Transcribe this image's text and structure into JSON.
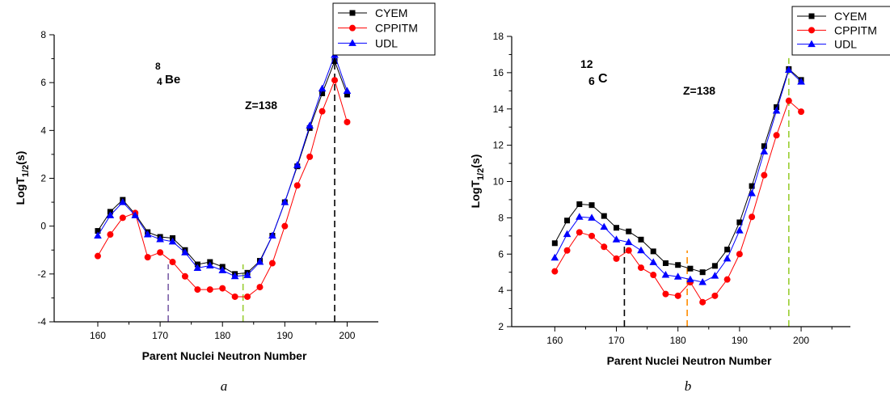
{
  "colors": {
    "CYEM": "#000000",
    "CPPITM": "#ff0000",
    "UDL": "#0000ff"
  },
  "chart_data": [
    {
      "type": "line",
      "caption": "a",
      "xlabel": "Parent Nuclei Neutron Number",
      "ylabel_main": "LogT",
      "ylabel_sub": "1/2",
      "ylabel_tail": "(s)",
      "xlim": [
        153,
        205
      ],
      "ylim": [
        -4,
        8
      ],
      "xticks": [
        160,
        170,
        180,
        190,
        200
      ],
      "yticks": [
        -4,
        -2,
        0,
        2,
        4,
        6,
        8
      ],
      "legend_position": "top-right",
      "annotations": {
        "nucleus_mass": "8",
        "nucleus_charge": "4",
        "nucleus_symbol": "Be",
        "z_label": "Z=138"
      },
      "vlines": [
        {
          "x": 171.3,
          "y_from": -4,
          "y_to": -1.6,
          "color": "#7b5ea7"
        },
        {
          "x": 183.3,
          "y_from": -4,
          "y_to": -1.6,
          "color": "#9acd32"
        },
        {
          "x": 198,
          "y_from": -4,
          "y_to": 7.5,
          "color": "#000000"
        }
      ],
      "x": [
        160,
        162,
        164,
        166,
        168,
        170,
        172,
        174,
        176,
        178,
        180,
        182,
        184,
        186,
        188,
        190,
        192,
        194,
        196,
        198,
        200
      ],
      "series": [
        {
          "name": "CYEM",
          "marker": "square",
          "values": [
            -0.2,
            0.6,
            1.1,
            0.5,
            -0.25,
            -0.45,
            -0.5,
            -1.0,
            -1.6,
            -1.5,
            -1.7,
            -2.0,
            -1.95,
            -1.45,
            -0.4,
            1.0,
            2.5,
            4.1,
            5.55,
            6.9,
            5.5
          ]
        },
        {
          "name": "CPPITM",
          "marker": "circle",
          "values": [
            -1.25,
            -0.35,
            0.35,
            0.55,
            -1.3,
            -1.1,
            -1.5,
            -2.1,
            -2.65,
            -2.65,
            -2.6,
            -2.95,
            -2.95,
            -2.55,
            -1.55,
            0.0,
            1.7,
            2.9,
            4.8,
            6.1,
            4.35
          ]
        },
        {
          "name": "UDL",
          "marker": "triangle",
          "values": [
            -0.4,
            0.45,
            1.0,
            0.45,
            -0.35,
            -0.55,
            -0.65,
            -1.1,
            -1.75,
            -1.65,
            -1.85,
            -2.1,
            -2.05,
            -1.5,
            -0.4,
            1.0,
            2.55,
            4.2,
            5.75,
            7.15,
            5.65
          ]
        }
      ]
    },
    {
      "type": "line",
      "caption": "b",
      "xlabel": "Parent Nuclei Neutron Number",
      "ylabel_main": "LogT",
      "ylabel_sub": "1/2",
      "ylabel_tail": "(s)",
      "xlim": [
        153,
        208
      ],
      "ylim": [
        2,
        18
      ],
      "xticks": [
        160,
        170,
        180,
        190,
        200
      ],
      "yticks": [
        2,
        4,
        6,
        8,
        10,
        12,
        14,
        16,
        18
      ],
      "legend_position": "top-right",
      "annotations": {
        "nucleus_mass": "12",
        "nucleus_charge": "6",
        "nucleus_symbol": "C",
        "z_label": "Z=138"
      },
      "vlines": [
        {
          "x": 171.3,
          "y_from": 2,
          "y_to": 6.6,
          "color": "#000000"
        },
        {
          "x": 181.5,
          "y_from": 2,
          "y_to": 6.2,
          "color": "#ff8c00"
        },
        {
          "x": 198,
          "y_from": 2,
          "y_to": 16.8,
          "color": "#9acd32"
        }
      ],
      "x": [
        160,
        162,
        164,
        166,
        168,
        170,
        172,
        174,
        176,
        178,
        180,
        182,
        184,
        186,
        188,
        190,
        192,
        194,
        196,
        198,
        200
      ],
      "series": [
        {
          "name": "CYEM",
          "marker": "square",
          "values": [
            6.6,
            7.85,
            8.75,
            8.7,
            8.1,
            7.45,
            7.25,
            6.8,
            6.15,
            5.5,
            5.4,
            5.2,
            5.0,
            5.35,
            6.25,
            7.75,
            9.75,
            11.95,
            14.1,
            16.2,
            15.6
          ]
        },
        {
          "name": "CPPITM",
          "marker": "circle",
          "values": [
            5.05,
            6.2,
            7.2,
            7.0,
            6.4,
            5.75,
            6.2,
            5.25,
            4.85,
            3.8,
            3.7,
            4.45,
            3.35,
            3.7,
            4.6,
            6.0,
            8.05,
            10.35,
            12.55,
            14.45,
            13.85
          ]
        },
        {
          "name": "UDL",
          "marker": "triangle",
          "values": [
            5.8,
            7.1,
            8.05,
            8.0,
            7.5,
            6.8,
            6.65,
            6.2,
            5.55,
            4.85,
            4.75,
            4.6,
            4.45,
            4.8,
            5.75,
            7.3,
            9.35,
            11.65,
            13.9,
            16.15,
            15.5
          ]
        }
      ]
    }
  ]
}
